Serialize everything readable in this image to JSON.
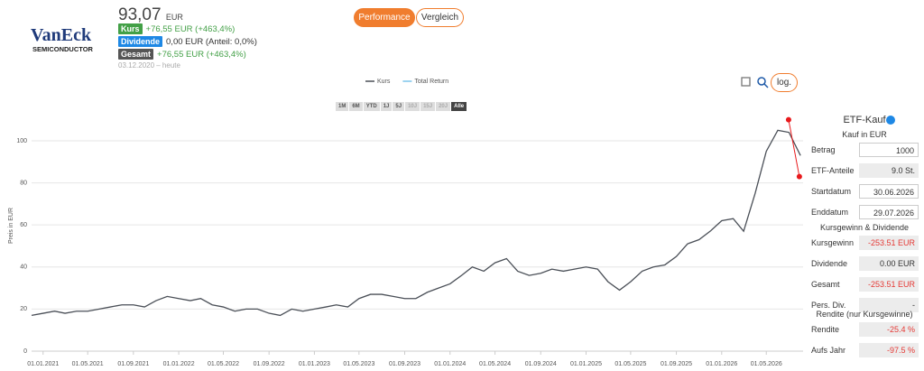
{
  "header": {
    "logo": "VanEck",
    "logo_sub": "SEMICONDUCTOR",
    "price": "93,07",
    "currency": "EUR",
    "rows": [
      {
        "badge": "Kurs",
        "text": "+76,55 EUR (+463,4%)",
        "badge_color": "#43a047",
        "text_color": "#43a047"
      },
      {
        "badge": "Dividende",
        "text": "0,00 EUR (Anteil: 0,0%)",
        "badge_color": "#1e88e5",
        "text_color": "#333333"
      },
      {
        "badge": "Gesamt",
        "text": "+76,55 EUR (+463,4%)",
        "badge_color": "#555555",
        "text_color": "#43a047"
      }
    ],
    "period": "03.12.2020 – heute"
  },
  "tabs": [
    "Performance",
    "Vergleich"
  ],
  "range_buttons": [
    "1M",
    "6M",
    "YTD",
    "1J",
    "5J",
    "10J",
    "15J",
    "20J",
    "Alle"
  ],
  "range_active": 8,
  "range_disabled": [
    5,
    6,
    7
  ],
  "log_button": "log.",
  "chart_data": {
    "type": "line",
    "ylabel": "Preis in EUR",
    "grid": true,
    "legend": [
      {
        "name": "Kurs",
        "color": "#4a4f57"
      },
      {
        "name": "Total Return",
        "color": "#7cc4ea"
      }
    ],
    "ylim": [
      0,
      112
    ],
    "yticks": [
      0,
      20,
      40,
      60,
      80,
      100
    ],
    "xlim": [
      "01.12.2020",
      "08.08.2026"
    ],
    "xticks": [
      "01.01.2021",
      "01.05.2021",
      "01.09.2021",
      "01.01.2022",
      "01.05.2022",
      "01.09.2022",
      "01.01.2023",
      "01.05.2023",
      "01.09.2023",
      "01.01.2024",
      "01.05.2024",
      "01.09.2024",
      "01.01.2025",
      "01.05.2025",
      "01.09.2025",
      "01.01.2026",
      "01.05.2026"
    ],
    "x": [
      "01.12.2020",
      "01.01.2021",
      "01.02.2021",
      "01.03.2021",
      "01.04.2021",
      "01.05.2021",
      "01.06.2021",
      "01.07.2021",
      "01.08.2021",
      "01.09.2021",
      "01.10.2021",
      "01.11.2021",
      "01.12.2021",
      "01.01.2022",
      "01.02.2022",
      "01.03.2022",
      "01.04.2022",
      "01.05.2022",
      "01.06.2022",
      "01.07.2022",
      "01.08.2022",
      "01.09.2022",
      "01.10.2022",
      "01.11.2022",
      "01.12.2022",
      "01.01.2023",
      "01.02.2023",
      "01.03.2023",
      "01.04.2023",
      "01.05.2023",
      "01.06.2023",
      "01.07.2023",
      "01.08.2023",
      "01.09.2023",
      "01.10.2023",
      "01.11.2023",
      "01.12.2023",
      "01.01.2024",
      "01.02.2024",
      "01.03.2024",
      "01.04.2024",
      "01.05.2024",
      "01.06.2024",
      "01.07.2024",
      "01.08.2024",
      "01.09.2024",
      "01.10.2024",
      "01.11.2024",
      "01.12.2024",
      "01.01.2025",
      "01.02.2025",
      "01.03.2025",
      "01.04.2025",
      "01.05.2025",
      "01.06.2025",
      "01.07.2025",
      "01.08.2025",
      "01.09.2025",
      "01.10.2025",
      "01.11.2025",
      "01.12.2025",
      "01.01.2026",
      "01.02.2026",
      "01.03.2026",
      "01.04.2026",
      "01.05.2026",
      "01.06.2026",
      "01.07.2026",
      "01.08.2026"
    ],
    "series": [
      {
        "name": "Kurs",
        "color": "#4a4f57",
        "values": [
          17,
          18,
          19,
          18,
          19,
          19,
          20,
          21,
          22,
          22,
          21,
          24,
          26,
          25,
          24,
          25,
          22,
          21,
          19,
          20,
          20,
          18,
          17,
          20,
          19,
          20,
          21,
          22,
          21,
          25,
          27,
          27,
          26,
          25,
          25,
          28,
          30,
          32,
          36,
          40,
          38,
          42,
          44,
          38,
          36,
          37,
          39,
          38,
          39,
          40,
          39,
          33,
          29,
          33,
          38,
          40,
          41,
          45,
          51,
          53,
          57,
          62,
          63,
          57,
          75,
          95,
          105,
          104,
          93
        ]
      }
    ],
    "selection": {
      "x": [
        "30.06.2026",
        "29.07.2026"
      ],
      "values": [
        110,
        83
      ],
      "color": "#e8191c"
    }
  },
  "panel": {
    "title": "ETF-Kauf",
    "subtitle": "Kauf in EUR",
    "rows": [
      {
        "label": "Betrag",
        "value": "1000",
        "input": true
      },
      {
        "label": "ETF-Anteile",
        "value": "9.0 St."
      },
      {
        "label": "Startdatum",
        "value": "30.06.2026",
        "input": true
      },
      {
        "label": "Enddatum",
        "value": "29.07.2026",
        "input": true
      }
    ],
    "section1": "Kursgewinn & Dividende",
    "rows1": [
      {
        "label": "Kursgewinn",
        "value": "-253.51 EUR",
        "color": "#e53935"
      },
      {
        "label": "Dividende",
        "value": "0.00 EUR"
      },
      {
        "label": "Gesamt",
        "value": "-253.51 EUR",
        "color": "#e53935"
      },
      {
        "label": "Pers. Div.",
        "value": "-"
      }
    ],
    "section2": "Rendite (nur Kursgewinne)",
    "rows2": [
      {
        "label": "Rendite",
        "value": "-25.4 %",
        "color": "#e53935"
      },
      {
        "label": "Aufs Jahr",
        "value": "-97.5 %",
        "color": "#e53935"
      }
    ]
  }
}
